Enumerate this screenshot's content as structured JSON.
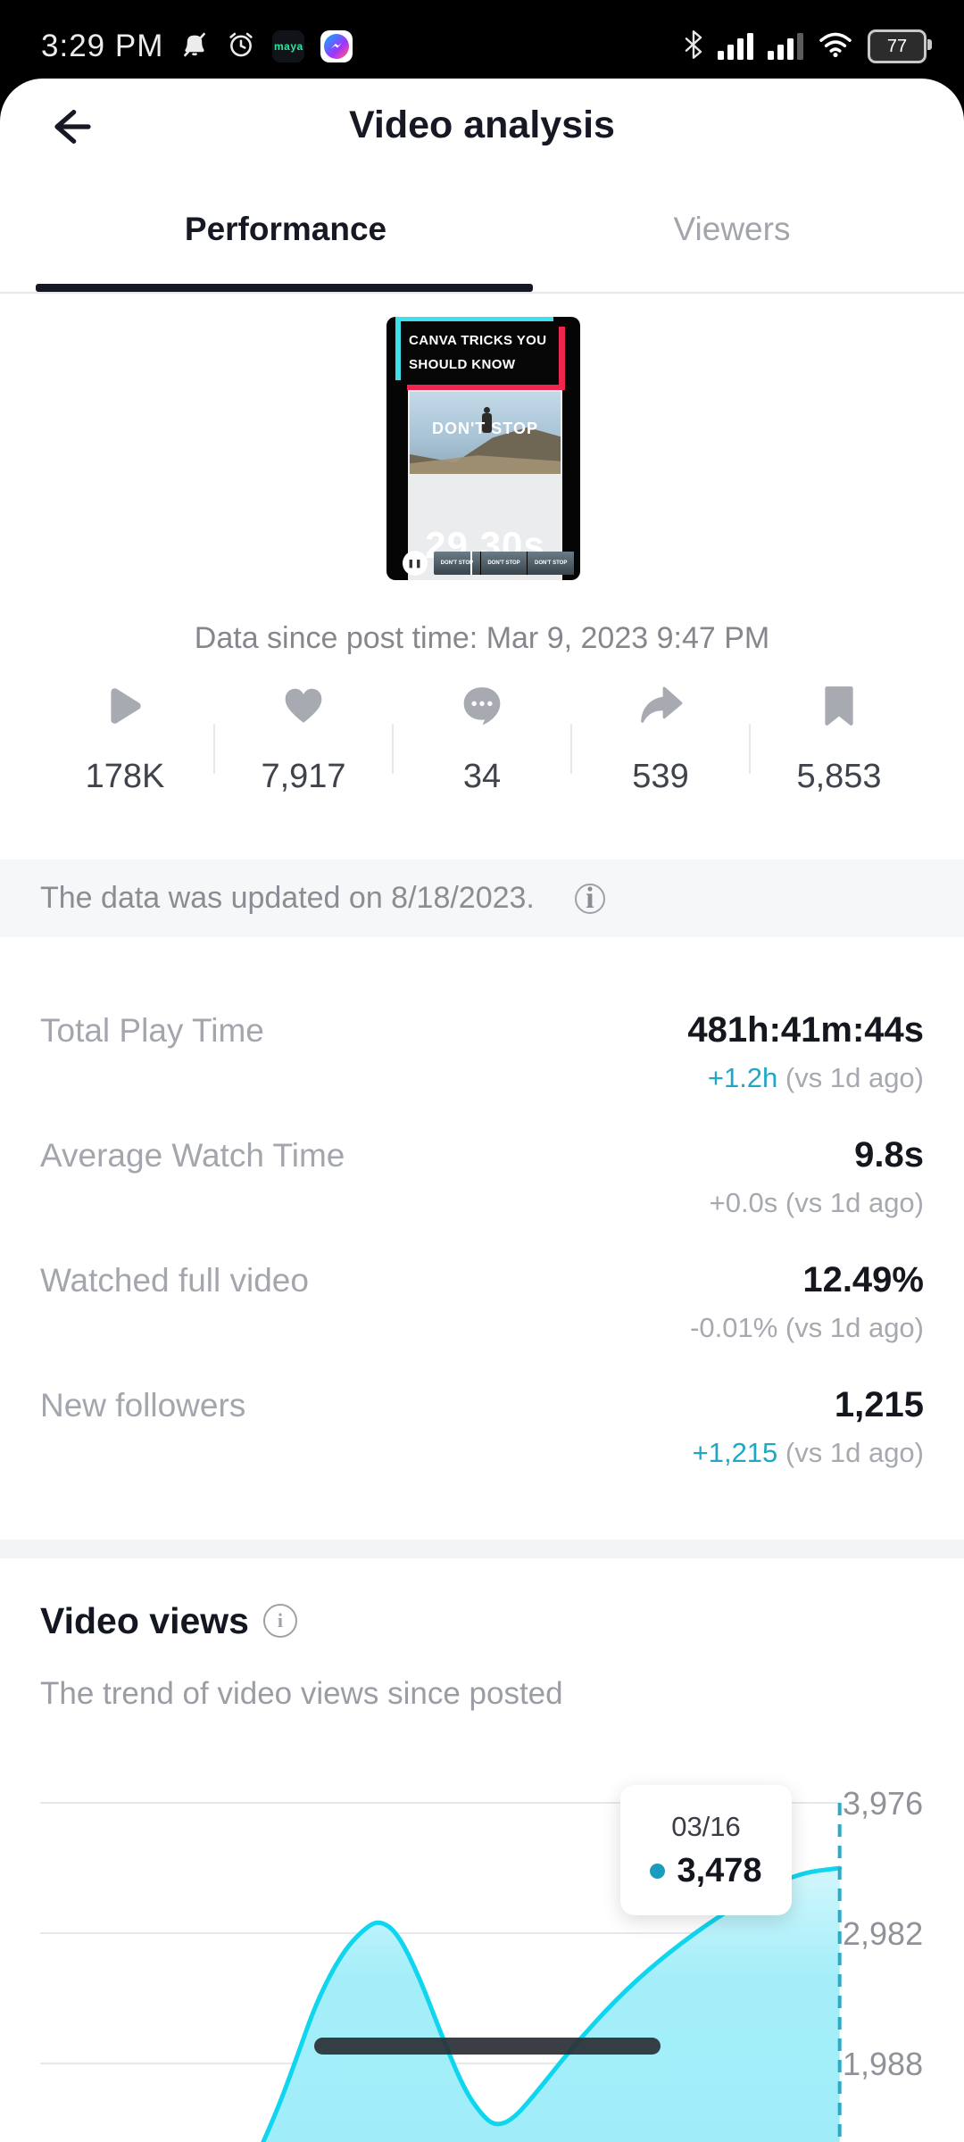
{
  "status_bar": {
    "time": "3:29 PM",
    "battery_percent": "77",
    "maya_label": "maya"
  },
  "header": {
    "title": "Video analysis"
  },
  "tabs": {
    "performance": "Performance",
    "viewers": "Viewers"
  },
  "video_card": {
    "caption": "CANVA TRICKS YOU SHOULD KNOW",
    "overlay_title": "DON'T STOP",
    "duration_label": "29.30s",
    "filmstrip_label": "DON'T STOP"
  },
  "post_time_note": "Data since post time: Mar 9, 2023 9:47 PM",
  "stats": [
    {
      "icon": "play-icon",
      "value": "178K"
    },
    {
      "icon": "heart-icon",
      "value": "7,917"
    },
    {
      "icon": "comment-icon",
      "value": "34"
    },
    {
      "icon": "share-icon",
      "value": "539"
    },
    {
      "icon": "bookmark-icon",
      "value": "5,853"
    }
  ],
  "update_banner": {
    "text": "The data was updated on 8/18/2023."
  },
  "metrics": [
    {
      "label": "Total Play Time",
      "value": "481h:41m:44s",
      "change": "+1.2h",
      "vs": "(vs 1d ago)",
      "accent": true
    },
    {
      "label": "Average Watch Time",
      "value": "9.8s",
      "change": "+0.0s",
      "vs": "(vs 1d ago)",
      "accent": false
    },
    {
      "label": "Watched full video",
      "value": "12.49%",
      "change": "-0.01%",
      "vs": "(vs 1d ago)",
      "accent": false
    },
    {
      "label": "New followers",
      "value": "1,215",
      "change": "+1,215",
      "vs": "(vs 1d ago)",
      "accent": true
    }
  ],
  "video_views": {
    "title": "Video views",
    "subtitle": "The trend of video views since posted"
  },
  "chart_data": {
    "type": "area",
    "title": "Video views",
    "xlabel": "",
    "ylabel": "",
    "grid": "horizontal",
    "legend": "none",
    "y_ticks": [
      1988,
      2982,
      3976
    ],
    "y_tick_labels": [
      "1,988",
      "2,982",
      "3,976"
    ],
    "ylim_visible": [
      1390,
      4450
    ],
    "line_color": "#10d5ef",
    "fill_color": "#a6eef8",
    "dashed_line_color": "#2babc9",
    "highlight": {
      "date": "03/16",
      "value": 3478,
      "value_label": "3,478",
      "x_frac": 0.871,
      "dot_color": "#1c9cbc"
    },
    "series": [
      {
        "x": 0.273,
        "v": 1388
      },
      {
        "x": 0.287,
        "v": 1620
      },
      {
        "x": 0.306,
        "v": 1995
      },
      {
        "x": 0.329,
        "v": 2472
      },
      {
        "x": 0.356,
        "v": 2846
      },
      {
        "x": 0.38,
        "v": 3030
      },
      {
        "x": 0.394,
        "v": 3077
      },
      {
        "x": 0.412,
        "v": 2989
      },
      {
        "x": 0.435,
        "v": 2648
      },
      {
        "x": 0.458,
        "v": 2205
      },
      {
        "x": 0.481,
        "v": 1797
      },
      {
        "x": 0.5,
        "v": 1593
      },
      {
        "x": 0.514,
        "v": 1511
      },
      {
        "x": 0.532,
        "v": 1559
      },
      {
        "x": 0.556,
        "v": 1763
      },
      {
        "x": 0.593,
        "v": 2104
      },
      {
        "x": 0.639,
        "v": 2478
      },
      {
        "x": 0.685,
        "v": 2785
      },
      {
        "x": 0.741,
        "v": 3091
      },
      {
        "x": 0.796,
        "v": 3329
      },
      {
        "x": 0.833,
        "v": 3445
      },
      {
        "x": 0.871,
        "v": 3478
      }
    ]
  },
  "colors": {
    "accent_teal": "#1fa7c7",
    "dark_text": "#161823",
    "gray_text": "#a3a6ad"
  }
}
